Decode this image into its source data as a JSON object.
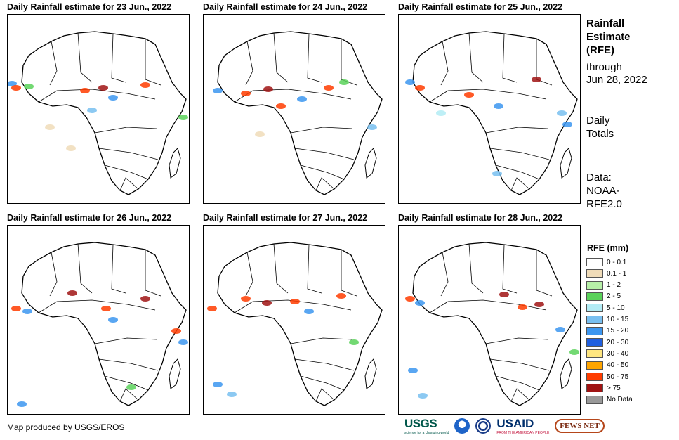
{
  "panels": [
    {
      "title": "Daily Rainfall estimate for 23 Jun., 2022"
    },
    {
      "title": "Daily Rainfall estimate for 24 Jun., 2022"
    },
    {
      "title": "Daily Rainfall estimate for 25 Jun., 2022"
    },
    {
      "title": "Daily Rainfall estimate for 26 Jun., 2022"
    },
    {
      "title": "Daily Rainfall estimate for 27 Jun., 2022"
    },
    {
      "title": "Daily Rainfall estimate for 28 Jun., 2022"
    }
  ],
  "sidebar": {
    "title_lines": [
      "Rainfall",
      "Estimate",
      "(RFE)"
    ],
    "through_lines": [
      "through",
      "Jun 28, 2022"
    ],
    "totals_lines": [
      "Daily",
      "Totals"
    ],
    "data_lines": [
      "Data:",
      "NOAA-",
      "RFE2.0"
    ]
  },
  "legend": {
    "title": "RFE (mm)",
    "items": [
      {
        "label": "0 - 0.1",
        "color": "#ffffff"
      },
      {
        "label": "0.1 - 1",
        "color": "#f0dcb9"
      },
      {
        "label": "1 - 2",
        "color": "#b7f0a8"
      },
      {
        "label": "2 - 5",
        "color": "#5ad25a"
      },
      {
        "label": "5 - 10",
        "color": "#b3ecf5"
      },
      {
        "label": "10 - 15",
        "color": "#78bff0"
      },
      {
        "label": "15 - 20",
        "color": "#3c96f0"
      },
      {
        "label": "20 - 30",
        "color": "#1f5fe0"
      },
      {
        "label": "30 - 40",
        "color": "#ffe680"
      },
      {
        "label": "40 - 50",
        "color": "#ffa500"
      },
      {
        "label": "50 - 75",
        "color": "#ff3c00"
      },
      {
        "label": "> 75",
        "color": "#a01414"
      },
      {
        "label": "No Data",
        "color": "#999999"
      }
    ]
  },
  "footer": {
    "credit": "Map produced by USGS/EROS",
    "logos": {
      "usgs": "USGS",
      "usgs_tagline": "science for a changing world",
      "usaid": "USAID",
      "usaid_tagline": "FROM THE AMERICAN PEOPLE",
      "fews": "FEWS NET"
    }
  }
}
